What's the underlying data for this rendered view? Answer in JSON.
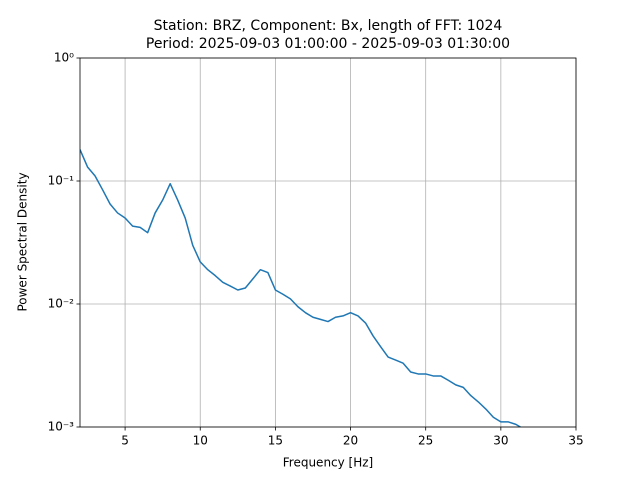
{
  "chart_data": {
    "type": "line",
    "title": "Station: BRZ, Component: Bx, length of FFT: 1024",
    "subtitle": "Period: 2025-09-03 01:00:00 - 2025-09-03 01:30:00",
    "x_label": "Frequency [Hz]",
    "y_label": "Power Spectral Density",
    "x": [
      2,
      2.5,
      3,
      3.5,
      4,
      4.5,
      5,
      5.5,
      6,
      6.5,
      7,
      7.5,
      8,
      8.5,
      9,
      9.5,
      10,
      10.5,
      11,
      11.5,
      12,
      12.5,
      13,
      13.5,
      14,
      14.5,
      15,
      15.5,
      16,
      16.5,
      17,
      17.5,
      18,
      18.5,
      19,
      19.5,
      20,
      20.5,
      21,
      21.5,
      22,
      22.5,
      23,
      23.5,
      24,
      24.5,
      25,
      25.5,
      26,
      26.5,
      27,
      27.5,
      28,
      28.5,
      29,
      29.5,
      30,
      30.5,
      31,
      31.3
    ],
    "series": [
      {
        "name": "Bx",
        "color": "#1f77b4",
        "values": [
          0.18,
          0.13,
          0.11,
          0.085,
          0.065,
          0.055,
          0.05,
          0.043,
          0.042,
          0.038,
          0.055,
          0.07,
          0.095,
          0.07,
          0.05,
          0.03,
          0.022,
          0.019,
          0.017,
          0.015,
          0.014,
          0.013,
          0.0135,
          0.016,
          0.019,
          0.018,
          0.013,
          0.012,
          0.011,
          0.0095,
          0.0085,
          0.0078,
          0.0075,
          0.0072,
          0.0078,
          0.008,
          0.0085,
          0.008,
          0.007,
          0.0055,
          0.0045,
          0.0037,
          0.0035,
          0.0033,
          0.0028,
          0.0027,
          0.0027,
          0.0026,
          0.0026,
          0.0024,
          0.0022,
          0.0021,
          0.0018,
          0.0016,
          0.0014,
          0.0012,
          0.0011,
          0.0011,
          0.00105,
          0.001
        ]
      }
    ],
    "xlim": [
      2,
      35
    ],
    "xticks": [
      5,
      10,
      15,
      20,
      25,
      30,
      35
    ],
    "ylim": [
      0.001,
      1
    ],
    "yscale": "log",
    "yticks": [
      {
        "value": 0.001,
        "label": "10⁻³"
      },
      {
        "value": 0.01,
        "label": "10⁻²"
      },
      {
        "value": 0.1,
        "label": "10⁻¹"
      },
      {
        "value": 1,
        "label": "10⁰"
      }
    ],
    "grid": true
  }
}
